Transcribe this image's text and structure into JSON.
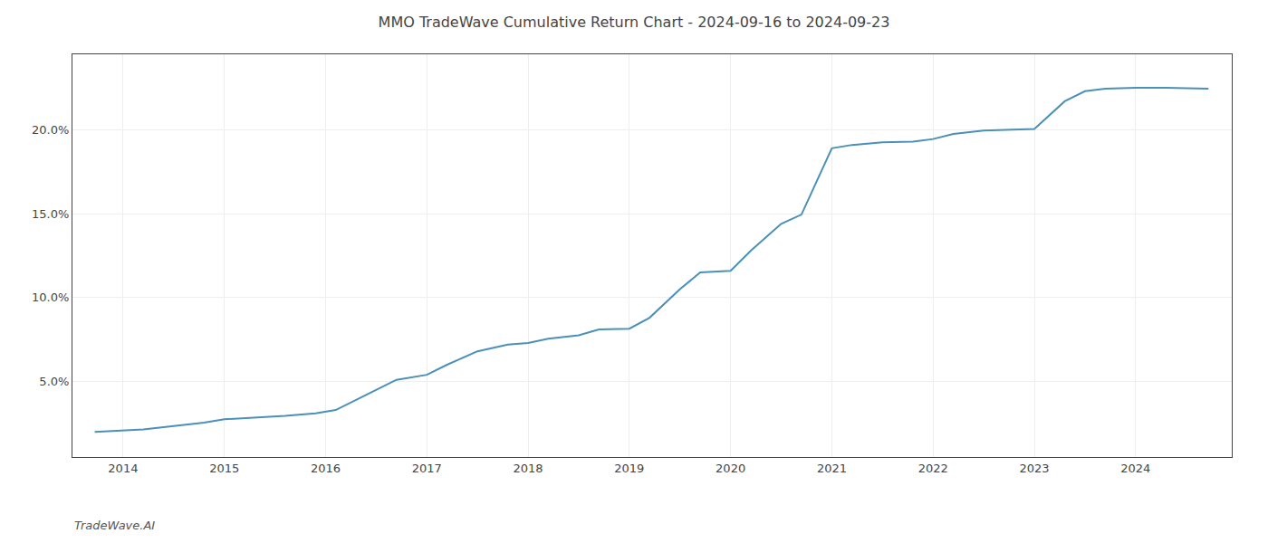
{
  "chart_data": {
    "type": "line",
    "title": "MMO TradeWave Cumulative Return Chart - 2024-09-16 to 2024-09-23",
    "annotations": [
      "TradeWave.AI"
    ],
    "x": [
      2013.72,
      2013.9,
      2014.2,
      2014.5,
      2014.8,
      2015.0,
      2015.3,
      2015.6,
      2015.9,
      2016.1,
      2016.4,
      2016.7,
      2017.0,
      2017.2,
      2017.5,
      2017.8,
      2018.0,
      2018.2,
      2018.5,
      2018.7,
      2019.0,
      2019.2,
      2019.5,
      2019.7,
      2020.0,
      2020.2,
      2020.5,
      2020.7,
      2021.0,
      2021.2,
      2021.5,
      2021.8,
      2022.0,
      2022.2,
      2022.5,
      2022.8,
      2023.0,
      2023.3,
      2023.5,
      2023.7,
      2024.0,
      2024.3,
      2024.6,
      2024.72
    ],
    "values": [
      2.0,
      2.05,
      2.15,
      2.35,
      2.55,
      2.75,
      2.85,
      2.95,
      3.1,
      3.3,
      4.2,
      5.1,
      5.4,
      6.0,
      6.8,
      7.2,
      7.3,
      7.55,
      7.75,
      8.1,
      8.15,
      8.8,
      10.5,
      11.5,
      11.6,
      12.8,
      14.4,
      14.95,
      18.9,
      19.1,
      19.25,
      19.3,
      19.45,
      19.75,
      19.95,
      20.0,
      20.05,
      21.7,
      22.3,
      22.45,
      22.5,
      22.5,
      22.45,
      22.45
    ],
    "color": "#4a90b8",
    "xlim": [
      2013.5,
      2024.95
    ],
    "xticks": [
      2014,
      2015,
      2016,
      2017,
      2018,
      2019,
      2020,
      2021,
      2022,
      2023,
      2024
    ],
    "ylim": [
      0.5,
      24.5
    ],
    "yticks": [
      {
        "value": 5.0,
        "label": "5.0%"
      },
      {
        "value": 10.0,
        "label": "10.0%"
      },
      {
        "value": 15.0,
        "label": "15.0%"
      },
      {
        "value": 20.0,
        "label": "20.0%"
      }
    ],
    "grid": true
  }
}
